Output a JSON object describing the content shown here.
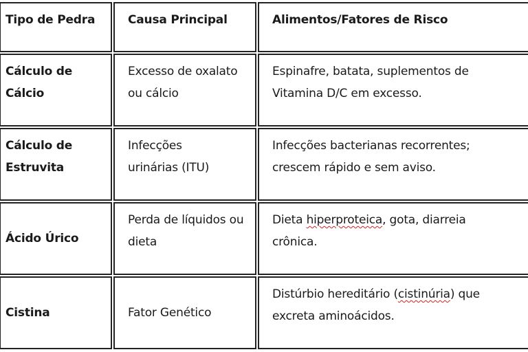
{
  "table": {
    "headers": [
      "Tipo de Pedra",
      "Causa Principal",
      "Alimentos/Fatores de Risco"
    ],
    "rows": [
      {
        "type": "Cálculo de Cálcio",
        "cause": "Excesso de oxalato ou cálcio",
        "risk": [
          "Espinafre, batata, suplementos de Vitamina D/C em excesso.",
          "",
          ""
        ]
      },
      {
        "type": "Cálculo de Estruvita",
        "cause": "Infecções urinárias (ITU)",
        "risk": [
          "Infecções bacterianas recorrentes; crescem rápido e sem aviso.",
          "",
          ""
        ]
      },
      {
        "type": "Ácido Úrico",
        "cause": "Perda de líquidos ou dieta",
        "risk": [
          "Dieta ",
          "hiperproteica",
          ", gota, diarreia crônica."
        ]
      },
      {
        "type": "Cistina",
        "cause": "Fator Genético",
        "risk": [
          "Distúrbio hereditário (",
          "cistinúria",
          ") que excreta aminoácidos."
        ]
      }
    ],
    "spellcheck_color": "#d0201f"
  }
}
